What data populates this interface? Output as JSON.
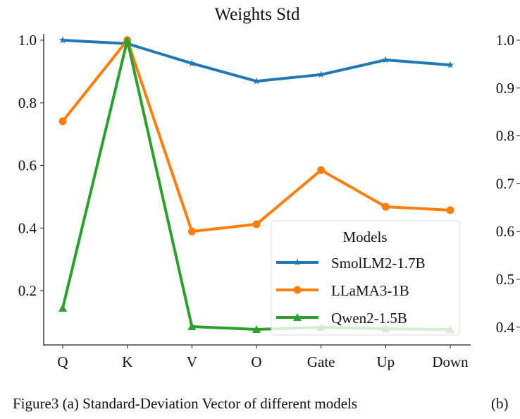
{
  "chart_data": [
    {
      "type": "line",
      "title": "Weights Std",
      "categories": [
        "Q",
        "K",
        "V",
        "O",
        "Gate",
        "Up",
        "Down"
      ],
      "ylim": [
        0.05,
        1.03
      ],
      "yticks": [
        "0.2",
        "0.4",
        "0.6",
        "0.8",
        "1.0"
      ],
      "grid": false,
      "legend": {
        "title": "Models",
        "placement": "lower-right"
      },
      "series": [
        {
          "name": "SmolLM2-1.7B",
          "color": "#1f77b4",
          "marker": "star",
          "values": [
            1.0,
            0.989,
            0.926,
            0.869,
            0.89,
            0.937,
            0.921
          ]
        },
        {
          "name": "LLaMA3-1B",
          "color": "#ff7f0e",
          "marker": "circle",
          "values": [
            0.741,
            1.0,
            0.389,
            0.412,
            0.585,
            0.468,
            0.457
          ]
        },
        {
          "name": "Qwen2-1.5B",
          "color": "#2ca02c",
          "marker": "triangle",
          "values": [
            0.144,
            1.0,
            0.085,
            0.076,
            0.083,
            0.078,
            0.076
          ]
        }
      ]
    },
    {
      "type": "line",
      "partial": true,
      "yticks": [
        "0.4",
        "0.5",
        "0.6",
        "0.7",
        "0.8",
        "0.9",
        "1.0"
      ]
    }
  ],
  "caption": {
    "a": "Figure3 (a) Standard-Deviation Vector of different models",
    "b": "(b)"
  }
}
